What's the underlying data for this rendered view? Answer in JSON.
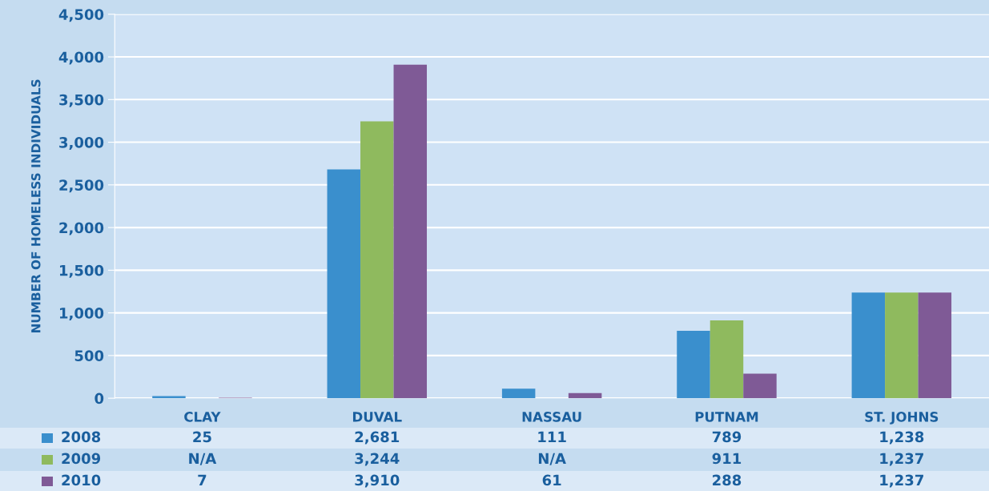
{
  "chart_data": {
    "type": "bar",
    "ylabel": "NUMBER OF HOMELESS INDIVIDUALS",
    "categories": [
      "CLAY",
      "DUVAL",
      "NASSAU",
      "PUTNAM",
      "ST. JOHNS"
    ],
    "series": [
      {
        "name": "2008",
        "color": "#3a8fcd",
        "values": [
          25,
          2681,
          111,
          789,
          1238
        ],
        "value_labels": [
          "25",
          "2,681",
          "111",
          "789",
          "1,238"
        ]
      },
      {
        "name": "2009",
        "color": "#8fba5e",
        "values": [
          null,
          3244,
          null,
          911,
          1237
        ],
        "value_labels": [
          "N/A",
          "3,244",
          "N/A",
          "911",
          "1,237"
        ]
      },
      {
        "name": "2010",
        "color": "#7f5a96",
        "values": [
          7,
          3910,
          61,
          288,
          1237
        ],
        "value_labels": [
          "7",
          "3,910",
          "61",
          "288",
          "1,237"
        ]
      }
    ],
    "ylim": [
      0,
      4500
    ],
    "yticks": [
      0,
      500,
      {
        "value": 1000,
        "label": "1,000"
      },
      {
        "value": 1500,
        "label": "1,500"
      },
      {
        "value": 2000,
        "label": "2,000"
      },
      {
        "value": 2500,
        "label": "2,500"
      },
      {
        "value": 3000,
        "label": "3,000"
      },
      {
        "value": 3500,
        "label": "3,500"
      },
      {
        "value": 4000,
        "label": "4,000"
      },
      {
        "value": 4500,
        "label": "4,500"
      }
    ],
    "grid": "y",
    "legend": "bottom"
  }
}
